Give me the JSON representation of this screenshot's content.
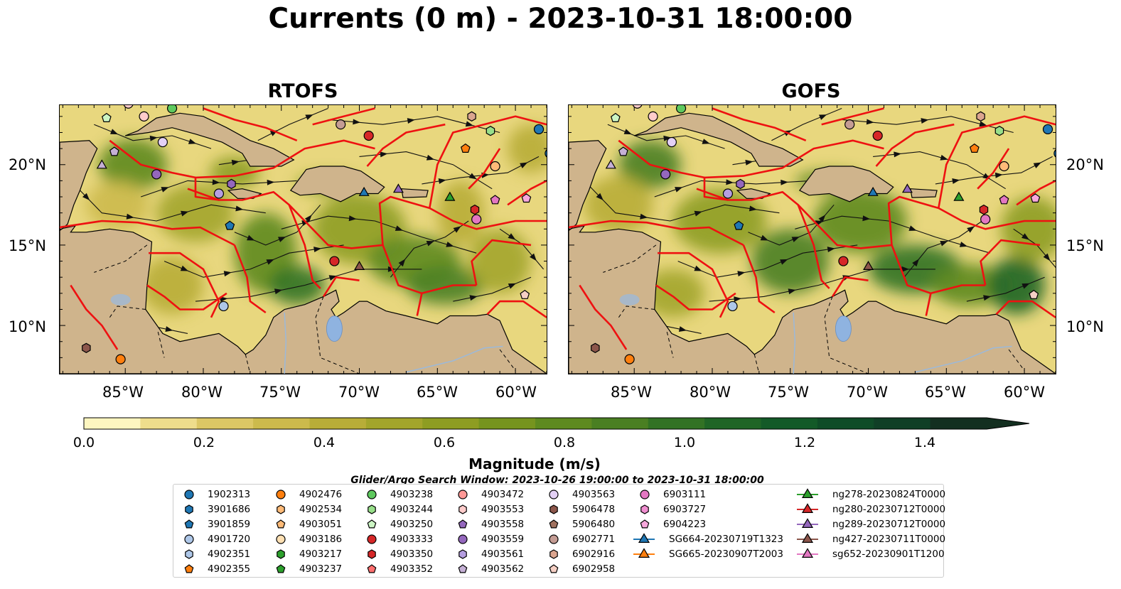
{
  "title": "Currents (0 m) - 2023-10-31 18:00:00",
  "panels": [
    {
      "title": "RTOFS"
    },
    {
      "title": "GOFS"
    }
  ],
  "lat_ticks": [
    "20°N",
    "15°N",
    "10°N"
  ],
  "lon_ticks": [
    "85°W",
    "80°W",
    "75°W",
    "70°W",
    "65°W",
    "60°W"
  ],
  "colorbar": {
    "label": "Magnitude (m/s)",
    "ticks": [
      "0.0",
      "0.2",
      "0.4",
      "0.6",
      "0.8",
      "1.0",
      "1.2",
      "1.4"
    ],
    "colors": [
      "#fdf6c0",
      "#eedd8c",
      "#dcc765",
      "#ccba4c",
      "#b8ad38",
      "#a3a52b",
      "#8e9d22",
      "#76941e",
      "#5e8a1f",
      "#4a7f22",
      "#327224",
      "#1f6526",
      "#135a28",
      "#0f4c27",
      "#103f26",
      "#132f20"
    ]
  },
  "search_window": "Glider/Argo Search Window: 2023-10-26 19:00:00 to 2023-10-31 18:00:00",
  "legend": [
    {
      "label": "1902313",
      "marker": "circle",
      "color": "#1f77b4"
    },
    {
      "label": "3901686",
      "marker": "hexagon",
      "color": "#1f77b4"
    },
    {
      "label": "3901859",
      "marker": "pentagon",
      "color": "#1f77b4"
    },
    {
      "label": "4901720",
      "marker": "circle",
      "color": "#aec7e8"
    },
    {
      "label": "4902351",
      "marker": "hexagon",
      "color": "#aec7e8"
    },
    {
      "label": "4902355",
      "marker": "pentagon",
      "color": "#ff7f0e"
    },
    {
      "label": "4902476",
      "marker": "circle",
      "color": "#ff7f0e"
    },
    {
      "label": "4902534",
      "marker": "hexagon",
      "color": "#ffbb78"
    },
    {
      "label": "4903051",
      "marker": "pentagon",
      "color": "#ffbb78"
    },
    {
      "label": "4903186",
      "marker": "circle",
      "color": "#ffe0b3"
    },
    {
      "label": "4903217",
      "marker": "hexagon",
      "color": "#2ca02c"
    },
    {
      "label": "4903237",
      "marker": "pentagon",
      "color": "#2ca02c"
    },
    {
      "label": "4903238",
      "marker": "circle",
      "color": "#5ec95e"
    },
    {
      "label": "4903244",
      "marker": "hexagon",
      "color": "#98df8a"
    },
    {
      "label": "4903250",
      "marker": "pentagon",
      "color": "#ccf5c4"
    },
    {
      "label": "4903333",
      "marker": "circle",
      "color": "#d62728"
    },
    {
      "label": "4903350",
      "marker": "hexagon",
      "color": "#d62728"
    },
    {
      "label": "4903352",
      "marker": "pentagon",
      "color": "#ff6f6f"
    },
    {
      "label": "4903472",
      "marker": "circle",
      "color": "#ff9896"
    },
    {
      "label": "4903553",
      "marker": "hexagon",
      "color": "#ffcccb"
    },
    {
      "label": "4903558",
      "marker": "pentagon",
      "color": "#9467bd"
    },
    {
      "label": "4903559",
      "marker": "circle",
      "color": "#9467bd"
    },
    {
      "label": "4903561",
      "marker": "hexagon",
      "color": "#b59ee0"
    },
    {
      "label": "4903562",
      "marker": "pentagon",
      "color": "#c5b0d5"
    },
    {
      "label": "4903563",
      "marker": "circle",
      "color": "#e3d0f5"
    },
    {
      "label": "5906478",
      "marker": "hexagon",
      "color": "#8c564b"
    },
    {
      "label": "5906480",
      "marker": "pentagon",
      "color": "#a0715f"
    },
    {
      "label": "6902771",
      "marker": "circle",
      "color": "#c49c94"
    },
    {
      "label": "6902916",
      "marker": "hexagon",
      "color": "#dba58f"
    },
    {
      "label": "6902958",
      "marker": "pentagon",
      "color": "#f5cfc4"
    },
    {
      "label": "6903111",
      "marker": "circle",
      "color": "#e377c2"
    },
    {
      "label": "6903727",
      "marker": "hexagon",
      "color": "#f08ed0"
    },
    {
      "label": "6904223",
      "marker": "pentagon",
      "color": "#f7a8dc"
    },
    {
      "label": "SG664-20230719T1323",
      "marker": "triangle-line",
      "color": "#1f77b4"
    },
    {
      "label": "SG665-20230907T2003",
      "marker": "triangle-line",
      "color": "#ff7f0e"
    },
    {
      "label": "ng278-20230824T0000",
      "marker": "triangle-line",
      "color": "#2ca02c"
    },
    {
      "label": "ng280-20230712T0000",
      "marker": "triangle-line",
      "color": "#d62728"
    },
    {
      "label": "ng289-20230712T0000",
      "marker": "triangle-line",
      "color": "#9467bd"
    },
    {
      "label": "ng427-20230711T0000",
      "marker": "triangle-line",
      "color": "#8c564b"
    },
    {
      "label": "sg652-20230901T1200",
      "marker": "triangle-line",
      "color": "#e377c2"
    }
  ],
  "map_points": [
    {
      "lon": -87.5,
      "lat": 8.6,
      "marker": "hexagon",
      "color": "#8c564b"
    },
    {
      "lon": -85.3,
      "lat": 7.9,
      "marker": "circle",
      "color": "#ff7f0e"
    },
    {
      "lon": -86.2,
      "lat": 22.9,
      "marker": "pentagon",
      "color": "#ccf5c4"
    },
    {
      "lon": -84.8,
      "lat": 23.8,
      "marker": "circle",
      "color": "#ffcccb"
    },
    {
      "lon": -83.8,
      "lat": 23.0,
      "marker": "circle",
      "color": "#ffcccb"
    },
    {
      "lon": -82.0,
      "lat": 23.5,
      "marker": "circle",
      "color": "#5ec95e"
    },
    {
      "lon": -85.7,
      "lat": 20.8,
      "marker": "pentagon",
      "color": "#c5b0d5"
    },
    {
      "lon": -86.5,
      "lat": 20.0,
      "marker": "triangle",
      "color": "#c5b0d5"
    },
    {
      "lon": -82.6,
      "lat": 21.4,
      "marker": "circle",
      "color": "#e3d0f5"
    },
    {
      "lon": -83.0,
      "lat": 19.4,
      "marker": "circle",
      "color": "#9467bd"
    },
    {
      "lon": -79.0,
      "lat": 18.2,
      "marker": "circle",
      "color": "#b59ee0"
    },
    {
      "lon": -78.2,
      "lat": 18.8,
      "marker": "hexagon",
      "color": "#9467bd"
    },
    {
      "lon": -78.3,
      "lat": 16.2,
      "marker": "pentagon",
      "color": "#1f77b4"
    },
    {
      "lon": -78.7,
      "lat": 11.2,
      "marker": "circle",
      "color": "#aec7e8"
    },
    {
      "lon": -71.2,
      "lat": 22.5,
      "marker": "circle",
      "color": "#c49c94"
    },
    {
      "lon": -69.4,
      "lat": 21.8,
      "marker": "circle",
      "color": "#d62728"
    },
    {
      "lon": -69.7,
      "lat": 18.3,
      "marker": "triangle",
      "color": "#1f77b4"
    },
    {
      "lon": -67.5,
      "lat": 18.5,
      "marker": "triangle",
      "color": "#9467bd"
    },
    {
      "lon": -71.6,
      "lat": 14.0,
      "marker": "circle",
      "color": "#d62728"
    },
    {
      "lon": -70.0,
      "lat": 13.7,
      "marker": "triangle",
      "color": "#8c564b"
    },
    {
      "lon": -64.2,
      "lat": 18.0,
      "marker": "triangle",
      "color": "#2ca02c"
    },
    {
      "lon": -63.2,
      "lat": 21.0,
      "marker": "pentagon",
      "color": "#ff7f0e"
    },
    {
      "lon": -62.8,
      "lat": 23.0,
      "marker": "hexagon",
      "color": "#dba58f"
    },
    {
      "lon": -61.6,
      "lat": 22.1,
      "marker": "hexagon",
      "color": "#98df8a"
    },
    {
      "lon": -61.3,
      "lat": 19.9,
      "marker": "circle",
      "color": "#ffbb78"
    },
    {
      "lon": -62.5,
      "lat": 16.6,
      "marker": "circle",
      "color": "#e377c2"
    },
    {
      "lon": -61.3,
      "lat": 17.8,
      "marker": "pentagon",
      "color": "#e377c2"
    },
    {
      "lon": -59.3,
      "lat": 17.9,
      "marker": "pentagon",
      "color": "#f7a8dc"
    },
    {
      "lon": -59.4,
      "lat": 11.9,
      "marker": "pentagon",
      "color": "#f5cfc4"
    },
    {
      "lon": -58.5,
      "lat": 22.2,
      "marker": "circle",
      "color": "#1f77b4"
    },
    {
      "lon": -57.8,
      "lat": 20.7,
      "marker": "circle",
      "color": "#1f77b4"
    },
    {
      "lon": -62.6,
      "lat": 17.2,
      "marker": "hexagon",
      "color": "#d62728"
    }
  ]
}
